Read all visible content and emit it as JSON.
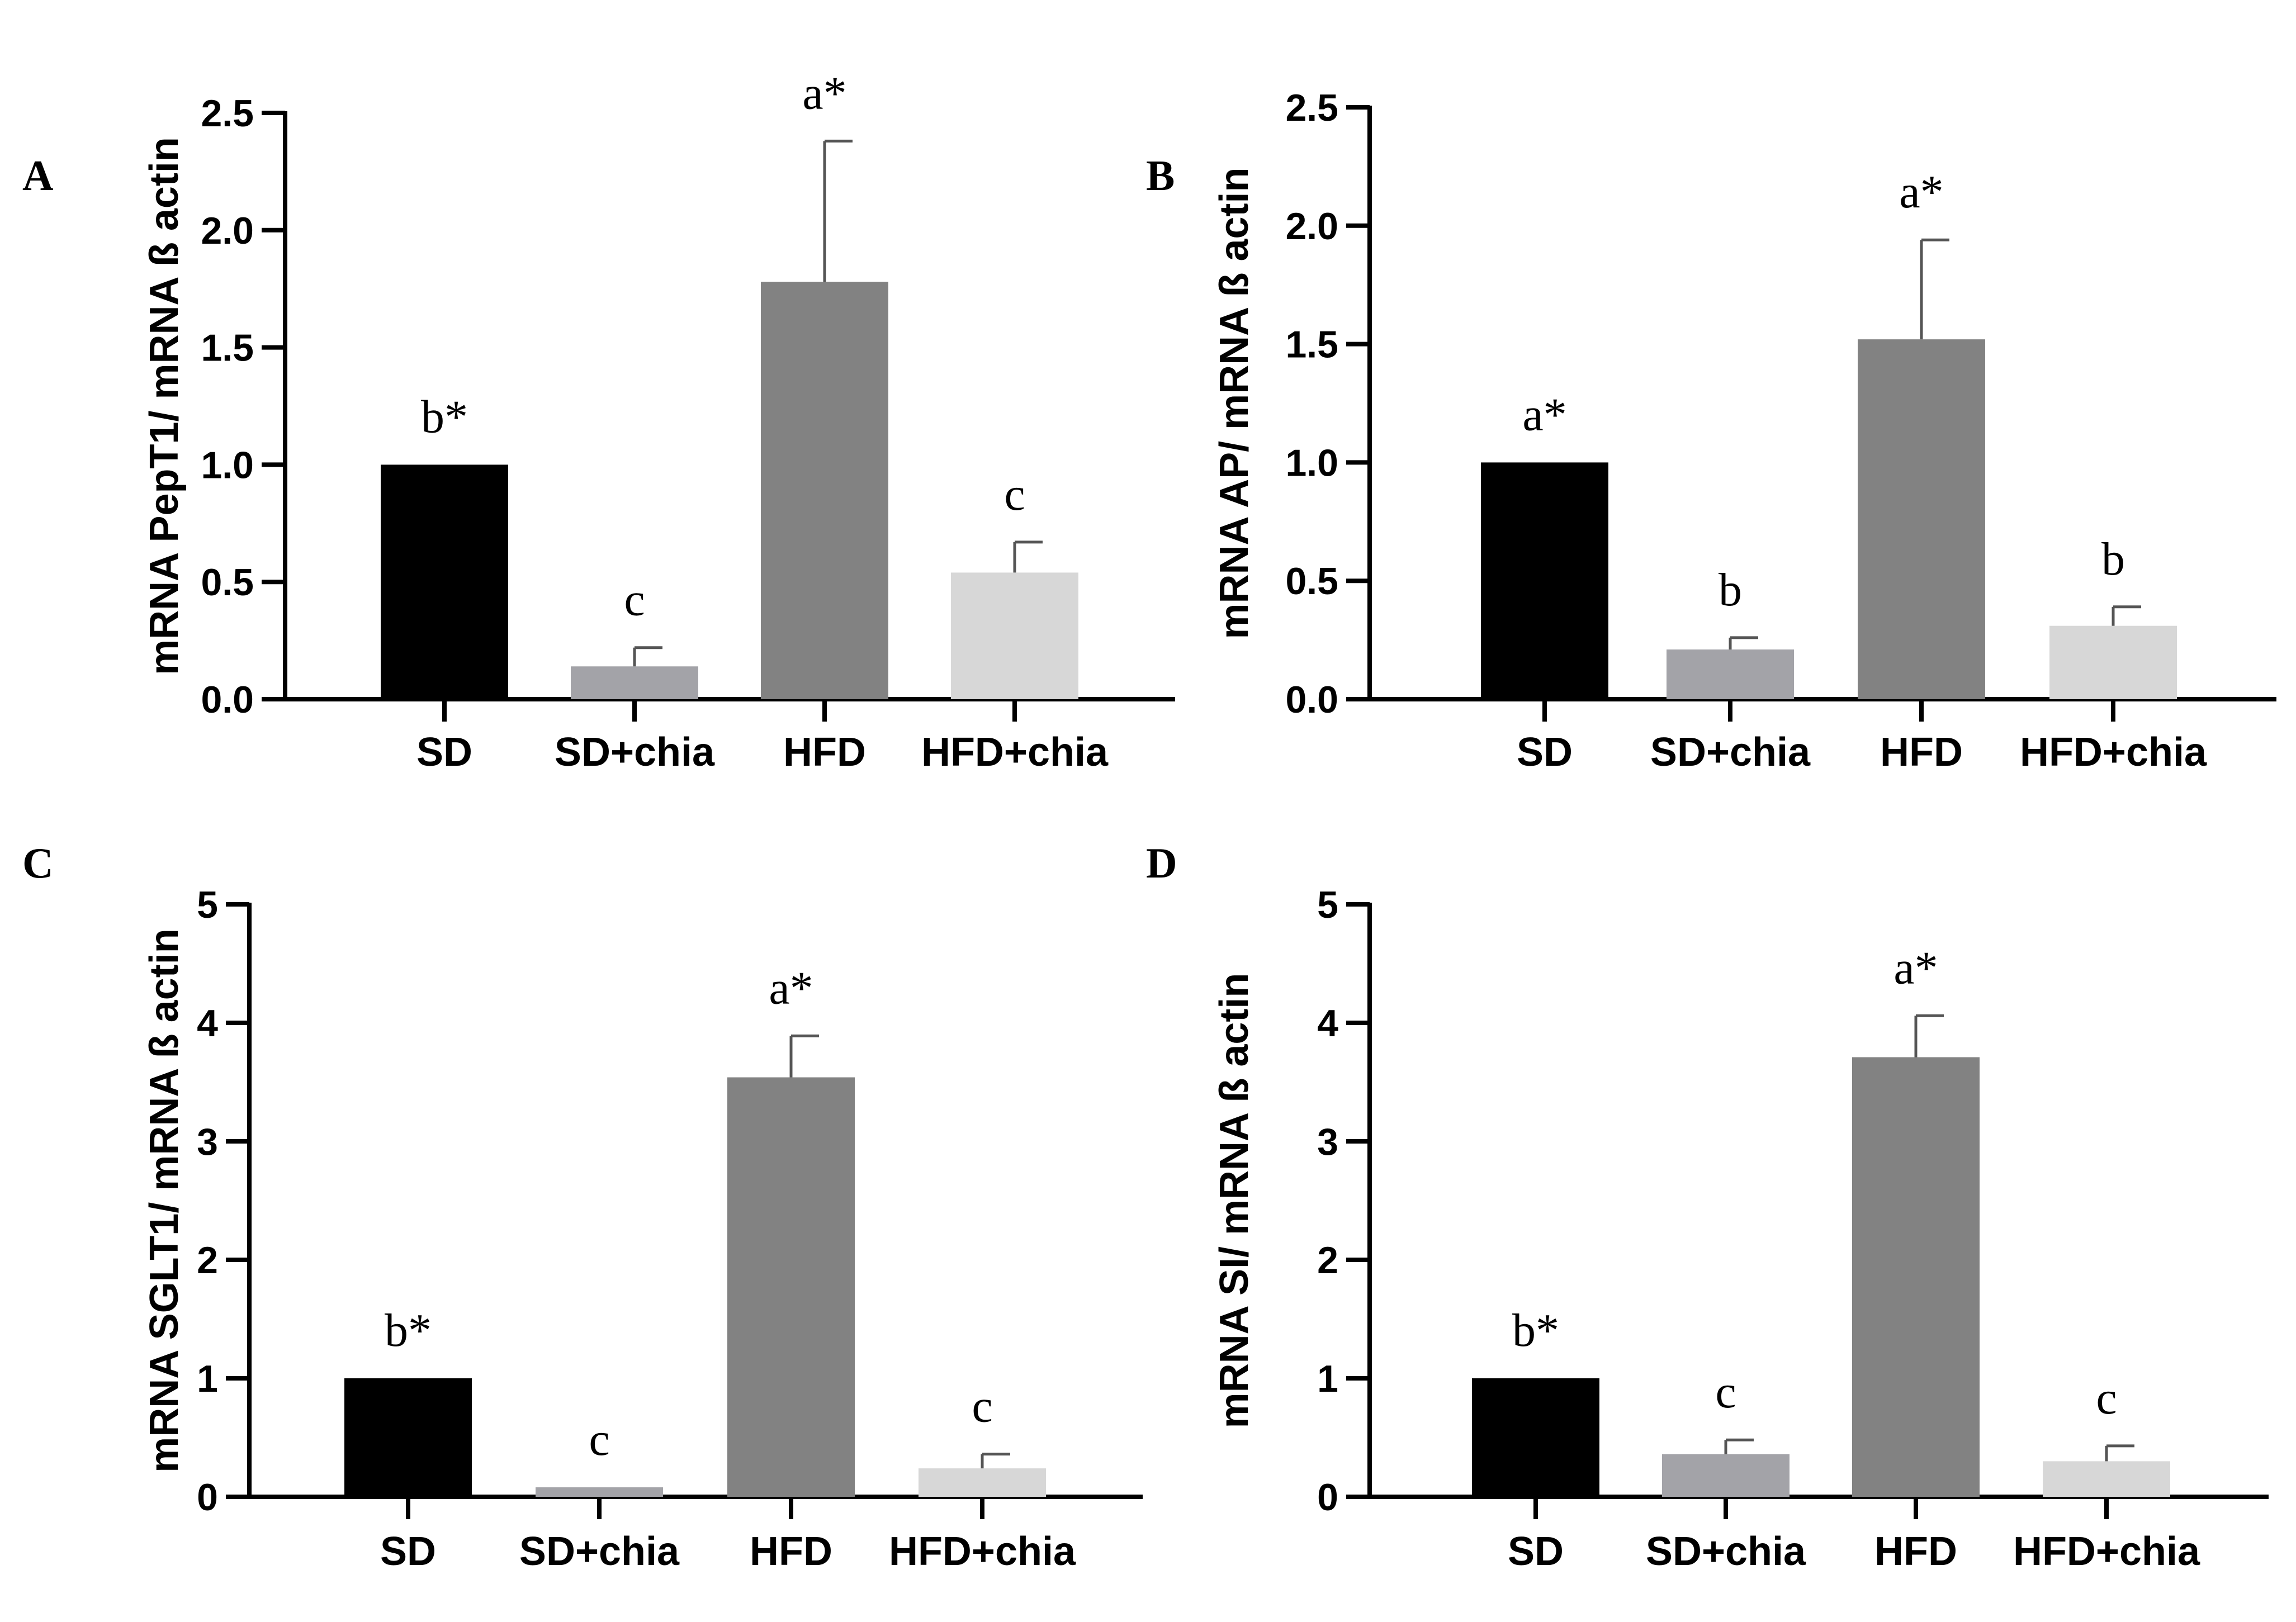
{
  "chart_data": [
    {
      "type": "bar",
      "panel": "A",
      "ylabel": "mRNA PepT1/ mRNA ß actin",
      "categories": [
        "SD",
        "SD+chia",
        "HFD",
        "HFD+chia"
      ],
      "values": [
        1.0,
        0.14,
        1.78,
        0.54
      ],
      "errors": [
        0.0,
        0.08,
        0.6,
        0.13
      ],
      "significance": [
        "b*",
        "c",
        "a*",
        "c"
      ],
      "ylim": [
        0,
        2.5
      ],
      "yticks": [
        0.0,
        0.5,
        1.0,
        1.5,
        2.0,
        2.5
      ],
      "yticklabels": [
        "0.0",
        "0.5",
        "1.0",
        "1.5",
        "2.0",
        "2.5"
      ],
      "colors": [
        "#000000",
        "#a3a3a8",
        "#828282",
        "#d7d7d7"
      ]
    },
    {
      "type": "bar",
      "panel": "B",
      "ylabel": "mRNA AP/ mRNA ß actin",
      "categories": [
        "SD",
        "SD+chia",
        "HFD",
        "HFD+chia"
      ],
      "values": [
        1.0,
        0.21,
        1.52,
        0.31
      ],
      "errors": [
        0.0,
        0.05,
        0.42,
        0.08
      ],
      "significance": [
        "a*",
        "b",
        "a*",
        "b"
      ],
      "ylim": [
        0,
        2.5
      ],
      "yticks": [
        0.0,
        0.5,
        1.0,
        1.5,
        2.0,
        2.5
      ],
      "yticklabels": [
        "0.0",
        "0.5",
        "1.0",
        "1.5",
        "2.0",
        "2.5"
      ],
      "colors": [
        "#000000",
        "#a3a3a8",
        "#828282",
        "#d7d7d7"
      ]
    },
    {
      "type": "bar",
      "panel": "C",
      "ylabel": "mRNA SGLT1/ mRNA ß actin",
      "categories": [
        "SD",
        "SD+chia",
        "HFD",
        "HFD+chia"
      ],
      "values": [
        1.0,
        0.08,
        3.54,
        0.24
      ],
      "errors": [
        0.0,
        0.0,
        0.35,
        0.12
      ],
      "significance": [
        "b*",
        "c",
        "a*",
        "c"
      ],
      "ylim": [
        0,
        5
      ],
      "yticks": [
        0,
        1,
        2,
        3,
        4,
        5
      ],
      "yticklabels": [
        "0",
        "1",
        "2",
        "3",
        "4",
        "5"
      ],
      "colors": [
        "#000000",
        "#a3a3a8",
        "#828282",
        "#d7d7d7"
      ]
    },
    {
      "type": "bar",
      "panel": "D",
      "ylabel": "mRNA SI/ mRNA ß actin",
      "categories": [
        "SD",
        "SD+chia",
        "HFD",
        "HFD+chia"
      ],
      "values": [
        1.0,
        0.36,
        3.71,
        0.3
      ],
      "errors": [
        0.0,
        0.12,
        0.35,
        0.13
      ],
      "significance": [
        "b*",
        "c",
        "a*",
        "c"
      ],
      "ylim": [
        0,
        5
      ],
      "yticks": [
        0,
        1,
        2,
        3,
        4,
        5
      ],
      "yticklabels": [
        "0",
        "1",
        "2",
        "3",
        "4",
        "5"
      ],
      "colors": [
        "#000000",
        "#a3a3a8",
        "#828282",
        "#d7d7d7"
      ]
    }
  ]
}
